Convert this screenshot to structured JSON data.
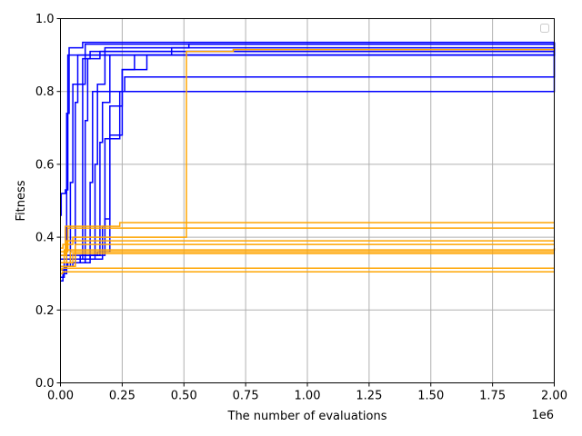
{
  "chart_data": {
    "type": "line",
    "title": "",
    "xlabel": "The number of evaluations",
    "ylabel": "Fitness",
    "x_offset_label": "1e6",
    "x_scale": 1000000,
    "xlim": [
      0,
      2000000
    ],
    "ylim": [
      0,
      1.0
    ],
    "grid": true,
    "legend": {
      "location": "top-right",
      "entries": []
    },
    "x_ticks": [
      {
        "value": 0,
        "label": "0.00"
      },
      {
        "value": 250000,
        "label": "0.25"
      },
      {
        "value": 500000,
        "label": "0.50"
      },
      {
        "value": 750000,
        "label": "0.75"
      },
      {
        "value": 1000000,
        "label": "1.00"
      },
      {
        "value": 1250000,
        "label": "1.25"
      },
      {
        "value": 1500000,
        "label": "1.50"
      },
      {
        "value": 1750000,
        "label": "1.75"
      },
      {
        "value": 2000000,
        "label": "2.00"
      }
    ],
    "y_ticks": [
      {
        "value": 0.0,
        "label": "0.0"
      },
      {
        "value": 0.2,
        "label": "0.2"
      },
      {
        "value": 0.4,
        "label": "0.4"
      },
      {
        "value": 0.6,
        "label": "0.6"
      },
      {
        "value": 0.8,
        "label": "0.8"
      },
      {
        "value": 1.0,
        "label": "1.0"
      }
    ],
    "colors": {
      "blue": "#0000ff",
      "orange": "#ffa500",
      "grid": "#b0b0b0"
    },
    "series": [
      {
        "color": "blue",
        "x": [
          0,
          3000,
          20000,
          30000,
          2000000
        ],
        "y": [
          0.46,
          0.52,
          0.53,
          0.9,
          0.935
        ]
      },
      {
        "color": "blue",
        "x": [
          0,
          10000,
          25000,
          35000,
          90000,
          2000000
        ],
        "y": [
          0.28,
          0.3,
          0.74,
          0.92,
          0.935,
          0.935
        ]
      },
      {
        "color": "blue",
        "x": [
          0,
          15000,
          40000,
          50000,
          70000,
          2000000
        ],
        "y": [
          0.29,
          0.33,
          0.55,
          0.82,
          0.9,
          0.935
        ]
      },
      {
        "color": "blue",
        "x": [
          0,
          20000,
          60000,
          70000,
          100000,
          2000000
        ],
        "y": [
          0.31,
          0.32,
          0.77,
          0.82,
          0.93,
          0.935
        ]
      },
      {
        "color": "blue",
        "x": [
          0,
          30000,
          80000,
          90000,
          120000,
          2000000
        ],
        "y": [
          0.32,
          0.33,
          0.34,
          0.89,
          0.91,
          0.935
        ]
      },
      {
        "color": "blue",
        "x": [
          0,
          40000,
          100000,
          110000,
          160000,
          2000000
        ],
        "y": [
          0.32,
          0.33,
          0.72,
          0.89,
          0.91,
          0.935
        ]
      },
      {
        "color": "blue",
        "x": [
          0,
          50000,
          120000,
          130000,
          2000000
        ],
        "y": [
          0.32,
          0.33,
          0.55,
          0.8,
          0.935
        ]
      },
      {
        "color": "blue",
        "x": [
          0,
          60000,
          140000,
          150000,
          180000,
          2000000
        ],
        "y": [
          0.33,
          0.34,
          0.6,
          0.82,
          0.92,
          0.935
        ]
      },
      {
        "color": "blue",
        "x": [
          0,
          80000,
          160000,
          170000,
          200000,
          2000000
        ],
        "y": [
          0.33,
          0.35,
          0.66,
          0.77,
          0.9,
          0.935
        ]
      },
      {
        "color": "blue",
        "x": [
          0,
          100000,
          170000,
          180000,
          240000,
          260000,
          2000000
        ],
        "y": [
          0.33,
          0.34,
          0.43,
          0.67,
          0.8,
          0.84,
          0.935
        ]
      },
      {
        "color": "blue",
        "x": [
          0,
          120000,
          180000,
          200000,
          250000,
          300000,
          2000000
        ],
        "y": [
          0.34,
          0.35,
          0.45,
          0.68,
          0.86,
          0.9,
          0.935
        ]
      },
      {
        "color": "blue",
        "x": [
          0,
          150000,
          200000,
          250000,
          350000,
          450000,
          520000,
          2000000
        ],
        "y": [
          0.35,
          0.36,
          0.76,
          0.86,
          0.9,
          0.92,
          0.93,
          0.935
        ]
      },
      {
        "color": "orange",
        "x": [
          0,
          10000,
          50000,
          500000,
          510000,
          700000,
          2000000
        ],
        "y": [
          0.37,
          0.38,
          0.4,
          0.4,
          0.91,
          0.915,
          0.915
        ]
      },
      {
        "color": "orange",
        "x": [
          0,
          20000,
          240000,
          2000000
        ],
        "y": [
          0.35,
          0.43,
          0.44,
          0.44
        ]
      },
      {
        "color": "orange",
        "x": [
          0,
          30000,
          2000000
        ],
        "y": [
          0.36,
          0.425,
          0.425
        ]
      },
      {
        "color": "orange",
        "x": [
          0,
          25000,
          2000000
        ],
        "y": [
          0.33,
          0.39,
          0.39
        ]
      },
      {
        "color": "orange",
        "x": [
          0,
          60000,
          2000000
        ],
        "y": [
          0.32,
          0.38,
          0.38
        ]
      },
      {
        "color": "orange",
        "x": [
          0,
          15000,
          1750000,
          2000000
        ],
        "y": [
          0.33,
          0.365,
          0.365,
          0.37
        ]
      },
      {
        "color": "orange",
        "x": [
          0,
          40000,
          2000000
        ],
        "y": [
          0.33,
          0.36,
          0.36
        ]
      },
      {
        "color": "orange",
        "x": [
          0,
          50000,
          2000000
        ],
        "y": [
          0.33,
          0.355,
          0.355
        ]
      },
      {
        "color": "orange",
        "x": [
          0,
          5000,
          2000000
        ],
        "y": [
          0.31,
          0.315,
          0.315
        ]
      },
      {
        "color": "orange",
        "x": [
          0,
          8000,
          2000000
        ],
        "y": [
          0.3,
          0.305,
          0.305
        ]
      }
    ]
  }
}
